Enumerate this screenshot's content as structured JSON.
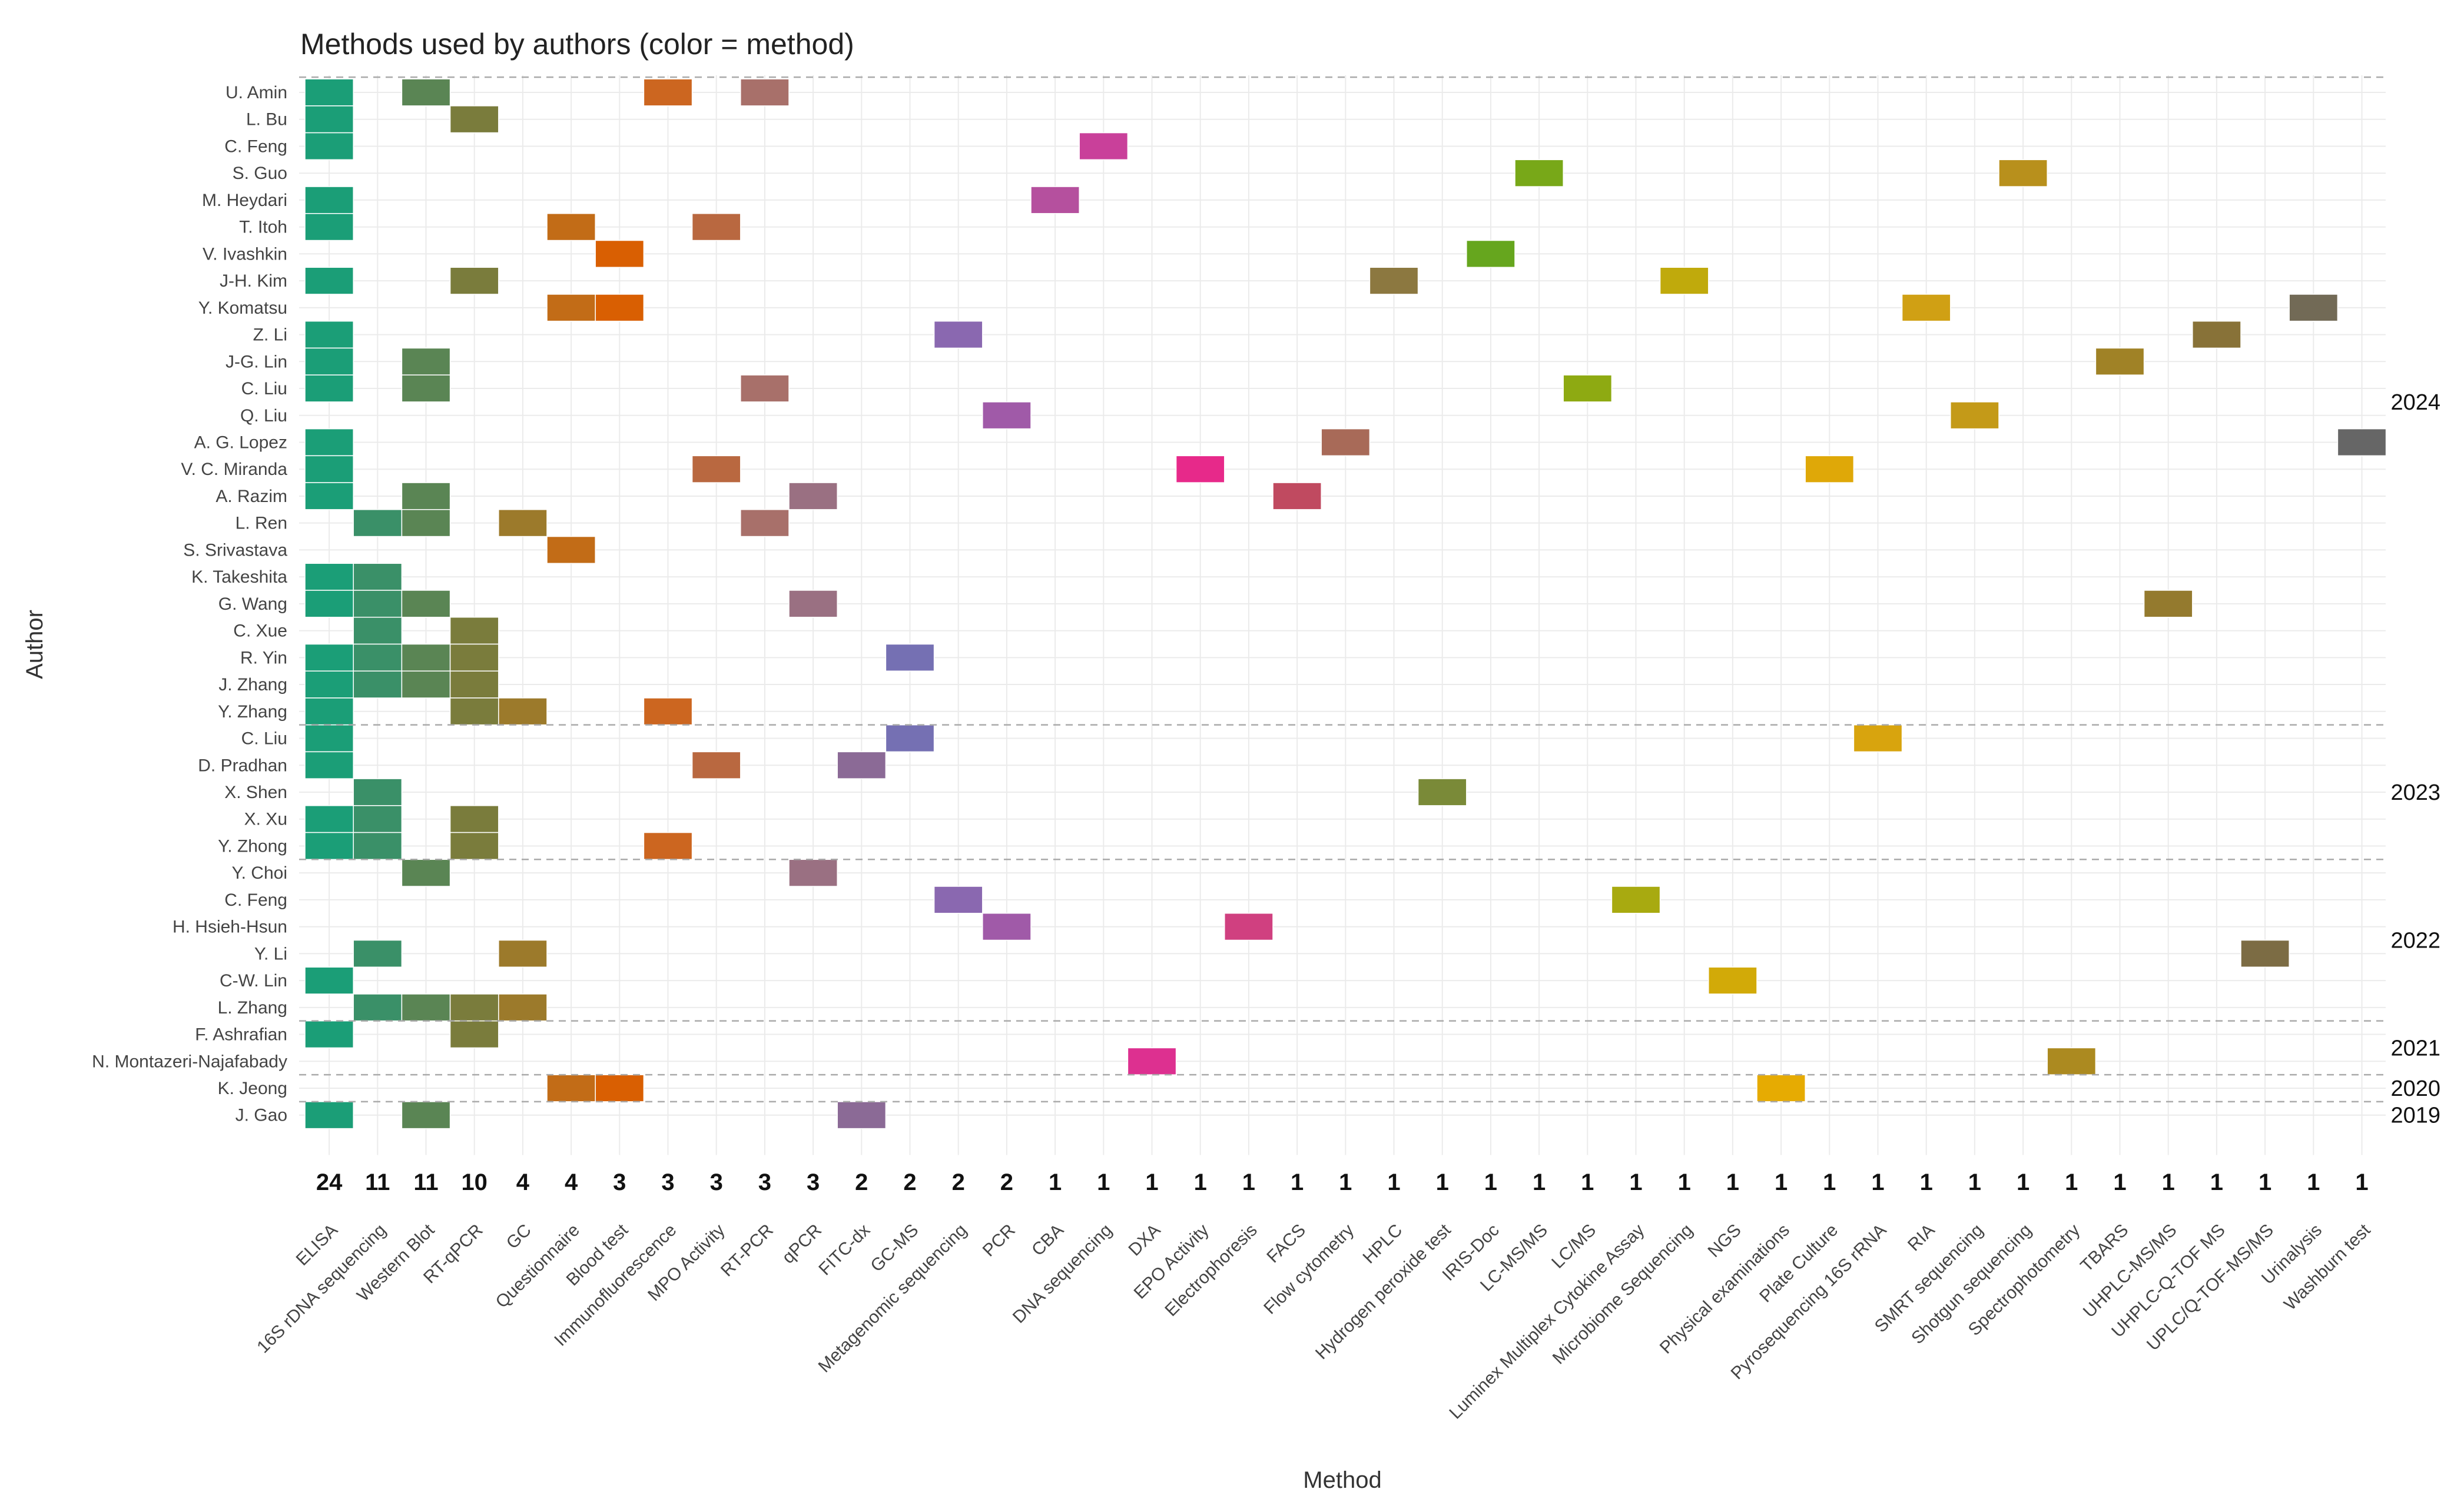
{
  "chart_data": {
    "type": "heatmap",
    "title": "Methods used by authors (color = method)",
    "xlabel": "Method",
    "ylabel": "Author",
    "grid": true,
    "methods": [
      {
        "name": "ELISA",
        "count": "24",
        "color": "#1b9e77"
      },
      {
        "name": "16S rDNA sequencing",
        "count": "11",
        "color": "#3a9068"
      },
      {
        "name": "Western Blot",
        "count": "11",
        "color": "#5a8554"
      },
      {
        "name": "RT-qPCR",
        "count": "10",
        "color": "#7a7c3c"
      },
      {
        "name": "GC",
        "count": "4",
        "color": "#9c7a2b"
      },
      {
        "name": "Questionnaire",
        "count": "4",
        "color": "#c26c17"
      },
      {
        "name": "Blood test",
        "count": "3",
        "color": "#d95f02"
      },
      {
        "name": "Immunofluorescence",
        "count": "3",
        "color": "#cc6620"
      },
      {
        "name": "MPO Activity",
        "count": "3",
        "color": "#b96840"
      },
      {
        "name": "RT-PCR",
        "count": "3",
        "color": "#a8706a"
      },
      {
        "name": "qPCR",
        "count": "3",
        "color": "#9a7082"
      },
      {
        "name": "FITC-dx",
        "count": "2",
        "color": "#8b6a96"
      },
      {
        "name": "GC-MS",
        "count": "2",
        "color": "#7570b3"
      },
      {
        "name": "Metagenomic sequencing",
        "count": "2",
        "color": "#8a68b0"
      },
      {
        "name": "PCR",
        "count": "2",
        "color": "#a05aa8"
      },
      {
        "name": "CBA",
        "count": "1",
        "color": "#b5509e"
      },
      {
        "name": "DNA sequencing",
        "count": "1",
        "color": "#c9409a"
      },
      {
        "name": "DXA",
        "count": "1",
        "color": "#dd3090"
      },
      {
        "name": "EPO Activity",
        "count": "1",
        "color": "#e7298a"
      },
      {
        "name": "Electrophoresis",
        "count": "1",
        "color": "#d04080"
      },
      {
        "name": "FACS",
        "count": "1",
        "color": "#c04a60"
      },
      {
        "name": "Flow cytometry",
        "count": "1",
        "color": "#a86a58"
      },
      {
        "name": "HPLC",
        "count": "1",
        "color": "#8c7840"
      },
      {
        "name": "Hydrogen peroxide test",
        "count": "1",
        "color": "#7a8a38"
      },
      {
        "name": "IRIS-Doc",
        "count": "1",
        "color": "#66a61e"
      },
      {
        "name": "LC-MS/MS",
        "count": "1",
        "color": "#78a818"
      },
      {
        "name": "LC/MS",
        "count": "1",
        "color": "#8eaa12"
      },
      {
        "name": "Luminex Multiplex Cytokine Assay",
        "count": "1",
        "color": "#a8aa10"
      },
      {
        "name": "Microbiome Sequencing",
        "count": "1",
        "color": "#c0aa0c"
      },
      {
        "name": "NGS",
        "count": "1",
        "color": "#d2aa08"
      },
      {
        "name": "Physical examinations",
        "count": "1",
        "color": "#e6ab02"
      },
      {
        "name": "Plate Culture",
        "count": "1",
        "color": "#dfa808"
      },
      {
        "name": "Pyrosequencing 16S rRNA",
        "count": "1",
        "color": "#d8a40e"
      },
      {
        "name": "RIA",
        "count": "1",
        "color": "#d0a014"
      },
      {
        "name": "SMRT sequencing",
        "count": "1",
        "color": "#c49a18"
      },
      {
        "name": "Shotgun sequencing",
        "count": "1",
        "color": "#b8901c"
      },
      {
        "name": "Spectrophotometry",
        "count": "1",
        "color": "#ac8a20"
      },
      {
        "name": "TBARS",
        "count": "1",
        "color": "#a08226"
      },
      {
        "name": "UHPLC-MS/MS",
        "count": "1",
        "color": "#947a2e"
      },
      {
        "name": "UHPLC-Q-TOF MS",
        "count": "1",
        "color": "#887238"
      },
      {
        "name": "UPLC/Q-TOF-MS/MS",
        "count": "1",
        "color": "#7c6c44"
      },
      {
        "name": "Urinalysis",
        "count": "1",
        "color": "#726a56"
      },
      {
        "name": "Washburn test",
        "count": "1",
        "color": "#666666"
      }
    ],
    "authors": [
      {
        "name": "U. Amin",
        "methods": [
          0,
          2,
          7,
          9
        ]
      },
      {
        "name": "L. Bu",
        "methods": [
          0,
          3
        ]
      },
      {
        "name": "C. Feng",
        "methods": [
          0,
          16
        ]
      },
      {
        "name": "S. Guo",
        "methods": [
          25,
          35
        ]
      },
      {
        "name": "M. Heydari",
        "methods": [
          0,
          15
        ]
      },
      {
        "name": "T. Itoh",
        "methods": [
          0,
          5,
          8
        ]
      },
      {
        "name": "V. Ivashkin",
        "methods": [
          6,
          24
        ]
      },
      {
        "name": "J-H. Kim",
        "methods": [
          0,
          3,
          22,
          28
        ]
      },
      {
        "name": "Y. Komatsu",
        "methods": [
          5,
          6,
          33,
          41
        ]
      },
      {
        "name": "Z. Li",
        "methods": [
          0,
          13,
          39
        ]
      },
      {
        "name": "J-G. Lin",
        "methods": [
          0,
          2,
          37
        ]
      },
      {
        "name": "C. Liu",
        "methods": [
          0,
          2,
          9,
          26
        ]
      },
      {
        "name": "Q. Liu",
        "methods": [
          14,
          34
        ]
      },
      {
        "name": "A. G. Lopez",
        "methods": [
          0,
          21,
          42
        ]
      },
      {
        "name": "V. C. Miranda",
        "methods": [
          0,
          8,
          18,
          31
        ]
      },
      {
        "name": "A. Razim",
        "methods": [
          0,
          2,
          10,
          20
        ]
      },
      {
        "name": "L. Ren",
        "methods": [
          1,
          2,
          4,
          9
        ]
      },
      {
        "name": "S. Srivastava",
        "methods": [
          5
        ]
      },
      {
        "name": "K. Takeshita",
        "methods": [
          0,
          1
        ]
      },
      {
        "name": "G. Wang",
        "methods": [
          0,
          1,
          2,
          10,
          38
        ]
      },
      {
        "name": "C. Xue",
        "methods": [
          1,
          3
        ]
      },
      {
        "name": "R. Yin",
        "methods": [
          0,
          1,
          2,
          3,
          12
        ]
      },
      {
        "name": "J. Zhang",
        "methods": [
          0,
          1,
          2,
          3
        ]
      },
      {
        "name": "Y. Zhang",
        "methods": [
          0,
          3,
          4,
          7
        ]
      },
      {
        "name": "C. Liu",
        "methods": [
          0,
          12,
          32
        ]
      },
      {
        "name": "D. Pradhan",
        "methods": [
          0,
          8,
          11
        ]
      },
      {
        "name": "X. Shen",
        "methods": [
          1,
          23
        ]
      },
      {
        "name": "X. Xu",
        "methods": [
          0,
          1,
          3
        ]
      },
      {
        "name": "Y. Zhong",
        "methods": [
          0,
          1,
          3,
          7
        ]
      },
      {
        "name": "Y. Choi",
        "methods": [
          2,
          10
        ]
      },
      {
        "name": "C. Feng",
        "methods": [
          13,
          27
        ]
      },
      {
        "name": "H. Hsieh-Hsun",
        "methods": [
          14,
          19
        ]
      },
      {
        "name": "Y. Li",
        "methods": [
          1,
          4,
          40
        ]
      },
      {
        "name": "C-W. Lin",
        "methods": [
          0,
          29
        ]
      },
      {
        "name": "L. Zhang",
        "methods": [
          1,
          2,
          3,
          4
        ]
      },
      {
        "name": "F. Ashrafian",
        "methods": [
          0,
          3
        ]
      },
      {
        "name": "N. Montazeri-Najafabady",
        "methods": [
          17,
          36
        ]
      },
      {
        "name": "K. Jeong",
        "methods": [
          5,
          6,
          30
        ]
      },
      {
        "name": "J. Gao",
        "methods": [
          0,
          2,
          11
        ]
      }
    ],
    "years": [
      {
        "label": "2024",
        "first_row": 0,
        "last_row": 23
      },
      {
        "label": "2023",
        "first_row": 24,
        "last_row": 28
      },
      {
        "label": "2022",
        "first_row": 29,
        "last_row": 34
      },
      {
        "label": "2021",
        "first_row": 35,
        "last_row": 36
      },
      {
        "label": "2020",
        "first_row": 37,
        "last_row": 37
      },
      {
        "label": "2019",
        "first_row": 38,
        "last_row": 38
      }
    ]
  }
}
